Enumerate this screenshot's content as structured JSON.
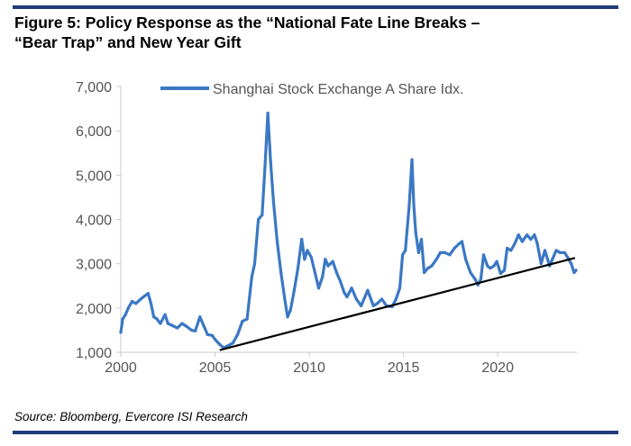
{
  "header": {
    "title_line1": "Figure 5:  Policy Response as the “National Fate Line Breaks –",
    "title_line2": "“Bear Trap” and New Year Gift"
  },
  "footer": {
    "source": "Source: Bloomberg, Evercore ISI Research"
  },
  "colors": {
    "accent_rule": "#1f3b7a",
    "series": "#3b78c4",
    "trendline": "#000000",
    "axis": "#c8c8c8"
  },
  "chart_data": {
    "type": "line",
    "title": "",
    "xlabel": "",
    "ylabel": "",
    "xlim": [
      2000,
      2024.2
    ],
    "ylim": [
      1000,
      7000
    ],
    "x_ticks": [
      2000,
      2005,
      2010,
      2015,
      2020
    ],
    "x_tick_labels": [
      "2000",
      "2005",
      "2010",
      "2015",
      "2020"
    ],
    "y_ticks": [
      1000,
      2000,
      3000,
      4000,
      5000,
      6000,
      7000
    ],
    "y_tick_labels": [
      "1,000",
      "2,000",
      "3,000",
      "4,000",
      "5,000",
      "6,000",
      "7,000"
    ],
    "grid": false,
    "legend": "top",
    "series": [
      {
        "name": "Shanghai Stock Exchange A Share Idx.",
        "points": [
          [
            2000.0,
            1450
          ],
          [
            2000.1,
            1750
          ],
          [
            2000.25,
            1850
          ],
          [
            2000.4,
            2000
          ],
          [
            2000.6,
            2150
          ],
          [
            2000.8,
            2100
          ],
          [
            2001.0,
            2180
          ],
          [
            2001.2,
            2250
          ],
          [
            2001.45,
            2330
          ],
          [
            2001.6,
            2100
          ],
          [
            2001.75,
            1800
          ],
          [
            2001.9,
            1760
          ],
          [
            2002.1,
            1650
          ],
          [
            2002.35,
            1850
          ],
          [
            2002.5,
            1650
          ],
          [
            2002.75,
            1600
          ],
          [
            2003.0,
            1550
          ],
          [
            2003.25,
            1650
          ],
          [
            2003.5,
            1580
          ],
          [
            2003.75,
            1500
          ],
          [
            2003.95,
            1480
          ],
          [
            2004.2,
            1800
          ],
          [
            2004.4,
            1600
          ],
          [
            2004.6,
            1400
          ],
          [
            2004.85,
            1380
          ],
          [
            2005.0,
            1290
          ],
          [
            2005.2,
            1200
          ],
          [
            2005.45,
            1100
          ],
          [
            2005.7,
            1150
          ],
          [
            2005.95,
            1210
          ],
          [
            2006.2,
            1400
          ],
          [
            2006.45,
            1700
          ],
          [
            2006.7,
            1750
          ],
          [
            2006.95,
            2700
          ],
          [
            2007.1,
            3000
          ],
          [
            2007.3,
            4000
          ],
          [
            2007.5,
            4100
          ],
          [
            2007.65,
            5200
          ],
          [
            2007.8,
            6400
          ],
          [
            2007.95,
            5300
          ],
          [
            2008.1,
            4400
          ],
          [
            2008.3,
            3500
          ],
          [
            2008.5,
            2800
          ],
          [
            2008.7,
            2200
          ],
          [
            2008.85,
            1800
          ],
          [
            2009.0,
            1950
          ],
          [
            2009.2,
            2400
          ],
          [
            2009.4,
            2900
          ],
          [
            2009.6,
            3550
          ],
          [
            2009.75,
            3100
          ],
          [
            2009.9,
            3300
          ],
          [
            2010.1,
            3150
          ],
          [
            2010.3,
            2800
          ],
          [
            2010.5,
            2450
          ],
          [
            2010.7,
            2700
          ],
          [
            2010.85,
            3100
          ],
          [
            2011.0,
            2950
          ],
          [
            2011.25,
            3050
          ],
          [
            2011.45,
            2800
          ],
          [
            2011.65,
            2600
          ],
          [
            2011.85,
            2350
          ],
          [
            2012.0,
            2250
          ],
          [
            2012.25,
            2450
          ],
          [
            2012.5,
            2200
          ],
          [
            2012.75,
            2050
          ],
          [
            2012.95,
            2250
          ],
          [
            2013.1,
            2400
          ],
          [
            2013.4,
            2050
          ],
          [
            2013.6,
            2100
          ],
          [
            2013.85,
            2200
          ],
          [
            2014.1,
            2050
          ],
          [
            2014.4,
            2030
          ],
          [
            2014.6,
            2200
          ],
          [
            2014.8,
            2450
          ],
          [
            2014.95,
            3200
          ],
          [
            2015.1,
            3300
          ],
          [
            2015.3,
            4300
          ],
          [
            2015.45,
            5350
          ],
          [
            2015.55,
            4300
          ],
          [
            2015.65,
            3700
          ],
          [
            2015.8,
            3250
          ],
          [
            2015.95,
            3550
          ],
          [
            2016.1,
            2800
          ],
          [
            2016.3,
            2900
          ],
          [
            2016.5,
            2950
          ],
          [
            2016.75,
            3100
          ],
          [
            2016.95,
            3250
          ],
          [
            2017.2,
            3250
          ],
          [
            2017.45,
            3200
          ],
          [
            2017.7,
            3350
          ],
          [
            2017.95,
            3450
          ],
          [
            2018.1,
            3500
          ],
          [
            2018.3,
            3100
          ],
          [
            2018.55,
            2800
          ],
          [
            2018.8,
            2650
          ],
          [
            2018.95,
            2520
          ],
          [
            2019.1,
            2650
          ],
          [
            2019.25,
            3200
          ],
          [
            2019.45,
            2950
          ],
          [
            2019.6,
            2900
          ],
          [
            2019.8,
            2950
          ],
          [
            2019.95,
            3050
          ],
          [
            2020.15,
            2780
          ],
          [
            2020.35,
            2850
          ],
          [
            2020.5,
            3350
          ],
          [
            2020.7,
            3300
          ],
          [
            2020.9,
            3450
          ],
          [
            2021.1,
            3650
          ],
          [
            2021.3,
            3500
          ],
          [
            2021.55,
            3650
          ],
          [
            2021.75,
            3550
          ],
          [
            2021.95,
            3650
          ],
          [
            2022.1,
            3450
          ],
          [
            2022.3,
            3000
          ],
          [
            2022.5,
            3300
          ],
          [
            2022.75,
            2950
          ],
          [
            2022.9,
            3100
          ],
          [
            2023.1,
            3300
          ],
          [
            2023.3,
            3250
          ],
          [
            2023.55,
            3250
          ],
          [
            2023.7,
            3150
          ],
          [
            2023.9,
            3000
          ],
          [
            2024.05,
            2800
          ],
          [
            2024.15,
            2850
          ]
        ]
      }
    ],
    "annotations": [
      {
        "type": "trendline",
        "from": [
          2005.25,
          1050
        ],
        "to": [
          2024.1,
          3130
        ]
      }
    ]
  }
}
